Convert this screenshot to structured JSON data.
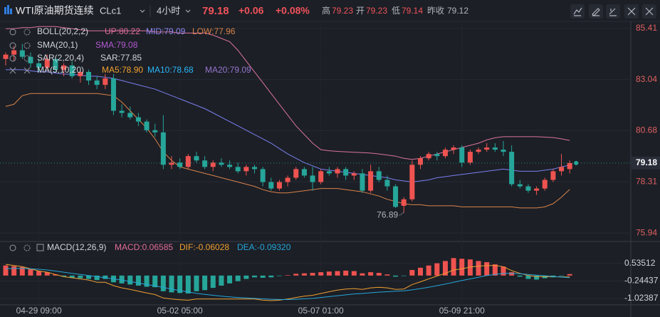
{
  "header": {
    "title": "WTI原油期货连续",
    "symbol": "CLc1",
    "interval": "4小时",
    "price": "79.18",
    "change": "+0.06",
    "change_pct": "+0.08%",
    "high_label": "高",
    "high": "79.23",
    "open_label": "开",
    "open": "79.23",
    "low_label": "低",
    "low": "79.14",
    "prev_label": "昨收",
    "prev": "79.12"
  },
  "chart_data": [
    {
      "type": "candlestick",
      "categories": [
        null,
        null,
        null,
        null,
        "04-29 09:00",
        null,
        null,
        null,
        null,
        null,
        null,
        null,
        null,
        null,
        null,
        null,
        null,
        null,
        null,
        null,
        null,
        "05-02 05:00",
        null,
        null,
        null,
        null,
        null,
        null,
        null,
        null,
        null,
        null,
        null,
        null,
        null,
        null,
        null,
        null,
        "05-07 01:00",
        null,
        null,
        null,
        null,
        null,
        null,
        null,
        null,
        null,
        null,
        null,
        null,
        null,
        null,
        null,
        null,
        "05-09 21:00",
        null,
        null,
        null,
        null,
        null,
        null,
        null,
        null,
        null,
        null,
        null,
        null,
        null
      ],
      "candles": [
        [
          84.0,
          84.3,
          83.7,
          84.2
        ],
        [
          84.2,
          84.6,
          83.9,
          84.4
        ],
        [
          84.4,
          84.7,
          84.0,
          84.1
        ],
        [
          84.1,
          84.3,
          83.6,
          83.8
        ],
        [
          83.8,
          84.0,
          83.4,
          83.6
        ],
        [
          83.6,
          84.2,
          83.5,
          84.0
        ],
        [
          84.0,
          84.1,
          83.4,
          83.5
        ],
        [
          83.5,
          83.8,
          83.2,
          83.7
        ],
        [
          83.7,
          83.9,
          83.1,
          83.2
        ],
        [
          83.2,
          83.5,
          82.9,
          83.4
        ],
        [
          83.4,
          83.5,
          82.8,
          83.0
        ],
        [
          83.0,
          83.2,
          82.6,
          82.8
        ],
        [
          82.8,
          83.3,
          82.6,
          83.1
        ],
        [
          83.1,
          83.3,
          81.4,
          81.6
        ],
        [
          81.6,
          81.9,
          81.3,
          81.5
        ],
        [
          81.5,
          81.8,
          81.2,
          81.3
        ],
        [
          81.3,
          81.5,
          80.9,
          81.1
        ],
        [
          81.1,
          81.2,
          80.6,
          80.7
        ],
        [
          80.7,
          81.0,
          80.4,
          80.6
        ],
        [
          80.6,
          81.4,
          78.9,
          79.1
        ],
        [
          79.1,
          79.5,
          78.9,
          79.2
        ],
        [
          79.2,
          79.4,
          78.9,
          79.0
        ],
        [
          79.0,
          79.6,
          78.9,
          79.5
        ],
        [
          79.5,
          79.7,
          79.2,
          79.3
        ],
        [
          79.3,
          79.5,
          78.9,
          79.0
        ],
        [
          79.0,
          79.3,
          78.8,
          79.2
        ],
        [
          79.2,
          79.4,
          79.0,
          79.1
        ],
        [
          79.1,
          79.3,
          78.9,
          79.0
        ],
        [
          79.0,
          79.2,
          78.7,
          78.8
        ],
        [
          78.8,
          79.1,
          78.6,
          79.0
        ],
        [
          79.0,
          79.1,
          78.7,
          78.9
        ],
        [
          78.9,
          79.0,
          78.1,
          78.3
        ],
        [
          78.3,
          78.5,
          77.9,
          78.0
        ],
        [
          78.0,
          78.4,
          77.9,
          78.3
        ],
        [
          78.3,
          78.6,
          78.1,
          78.5
        ],
        [
          78.5,
          79.0,
          78.4,
          78.9
        ],
        [
          78.9,
          79.0,
          78.5,
          78.6
        ],
        [
          78.6,
          79.0,
          77.9,
          78.3
        ],
        [
          78.3,
          78.9,
          78.2,
          78.8
        ],
        [
          78.8,
          79.0,
          78.6,
          78.7
        ],
        [
          78.7,
          79.0,
          78.5,
          78.9
        ],
        [
          78.9,
          79.0,
          78.4,
          78.6
        ],
        [
          78.6,
          78.8,
          78.4,
          78.7
        ],
        [
          78.7,
          78.9,
          77.8,
          77.9
        ],
        [
          77.9,
          79.1,
          77.8,
          78.8
        ],
        [
          78.8,
          79.0,
          78.3,
          78.4
        ],
        [
          78.4,
          78.6,
          77.9,
          78.1
        ],
        [
          78.1,
          78.2,
          77.1,
          77.15
        ],
        [
          77.2,
          77.6,
          76.89,
          77.5
        ],
        [
          77.5,
          79.3,
          77.4,
          79.1
        ],
        [
          79.1,
          79.5,
          78.9,
          79.4
        ],
        [
          79.4,
          79.7,
          79.3,
          79.6
        ],
        [
          79.6,
          79.7,
          79.3,
          79.5
        ],
        [
          79.5,
          79.9,
          79.4,
          79.8
        ],
        [
          79.8,
          80.0,
          79.6,
          79.9
        ],
        [
          79.9,
          80.0,
          79.0,
          79.2
        ],
        [
          79.2,
          79.8,
          79.1,
          79.7
        ],
        [
          79.7,
          79.9,
          79.6,
          79.8
        ],
        [
          79.8,
          80.1,
          79.7,
          79.9
        ],
        [
          79.9,
          80.1,
          79.7,
          79.8
        ],
        [
          79.8,
          80.2,
          79.5,
          79.7
        ],
        [
          79.7,
          80.0,
          78.1,
          78.2
        ],
        [
          78.2,
          78.4,
          78.0,
          78.1
        ],
        [
          78.1,
          78.2,
          77.8,
          77.9
        ],
        [
          77.9,
          78.1,
          77.7,
          78.0
        ],
        [
          78.0,
          78.5,
          77.9,
          78.4
        ],
        [
          78.4,
          78.9,
          78.3,
          78.8
        ],
        [
          78.8,
          79.6,
          78.6,
          79.0
        ],
        [
          78.9,
          79.3,
          78.7,
          79.18
        ]
      ],
      "up_color": "#ef5350",
      "down_color": "#26a69a",
      "series": [
        {
          "name": "UP",
          "color": "#d9749c",
          "values": [
            85.4,
            85.4,
            85.45,
            85.45,
            85.5,
            85.5,
            85.5,
            85.45,
            85.4,
            85.35,
            85.3,
            85.3,
            85.3,
            85.3,
            85.3,
            85.3,
            85.3,
            85.3,
            85.25,
            85.25,
            85.25,
            85.2,
            85.2,
            85.2,
            85.2,
            85.1,
            84.95,
            84.8,
            84.4,
            83.9,
            83.4,
            82.9,
            82.4,
            81.9,
            81.4,
            80.9,
            80.5,
            80.1,
            79.8,
            79.75,
            79.72,
            79.7,
            79.68,
            79.66,
            79.64,
            79.6,
            79.55,
            79.5,
            79.4,
            79.35,
            79.4,
            79.5,
            79.6,
            79.7,
            79.8,
            79.9,
            80.0,
            80.1,
            80.25,
            80.35,
            80.4,
            80.4,
            80.4,
            80.4,
            80.4,
            80.38,
            80.36,
            80.3,
            80.22
          ]
        },
        {
          "name": "MID",
          "color": "#7b7ff0",
          "values": [
            83.5,
            83.5,
            83.5,
            83.45,
            83.4,
            83.4,
            83.35,
            83.3,
            83.3,
            83.25,
            83.2,
            83.2,
            83.15,
            83.1,
            83.0,
            82.9,
            82.8,
            82.7,
            82.6,
            82.45,
            82.3,
            82.15,
            82.0,
            81.85,
            81.7,
            81.5,
            81.3,
            81.1,
            80.9,
            80.7,
            80.5,
            80.3,
            80.1,
            79.85,
            79.6,
            79.4,
            79.2,
            79.05,
            78.9,
            78.85,
            78.8,
            78.75,
            78.7,
            78.65,
            78.6,
            78.55,
            78.5,
            78.4,
            78.35,
            78.3,
            78.35,
            78.4,
            78.5,
            78.55,
            78.6,
            78.65,
            78.7,
            78.75,
            78.8,
            78.85,
            78.9,
            78.85,
            78.8,
            78.8,
            78.8,
            78.85,
            78.9,
            79.0,
            79.09
          ]
        },
        {
          "name": "LOW",
          "color": "#d9834a",
          "values": [
            81.8,
            81.9,
            82.3,
            82.4,
            82.4,
            82.4,
            82.4,
            82.4,
            82.4,
            82.4,
            82.4,
            82.4,
            82.35,
            82.3,
            82.0,
            81.6,
            81.2,
            80.8,
            80.3,
            79.7,
            79.3,
            79.0,
            78.9,
            78.8,
            78.7,
            78.6,
            78.5,
            78.4,
            78.3,
            78.2,
            78.1,
            77.95,
            77.85,
            77.8,
            77.8,
            77.85,
            77.9,
            77.95,
            78.0,
            78.0,
            78.0,
            77.95,
            77.9,
            77.85,
            77.75,
            77.65,
            77.5,
            77.4,
            77.3,
            77.25,
            77.25,
            77.2,
            77.2,
            77.2,
            77.2,
            77.15,
            77.15,
            77.15,
            77.15,
            77.15,
            77.15,
            77.15,
            77.1,
            77.1,
            77.1,
            77.15,
            77.3,
            77.6,
            77.96
          ]
        }
      ],
      "legend": [
        {
          "name": "BOLL(20,2,2)",
          "items": [
            {
              "text": "UP:80.22",
              "color": "#e06c98"
            },
            {
              "text": "MID:79.09",
              "color": "#8f86f0"
            },
            {
              "text": "LOW:77.96",
              "color": "#d9834a"
            }
          ]
        },
        {
          "name": "SMA(20,1)",
          "items": [
            {
              "text": "SMA:79.08",
              "color": "#b259d0"
            }
          ]
        },
        {
          "name": "SAR(2,20,4)",
          "items": [
            {
              "text": "SAR:77.85",
              "color": "#d1d4dc"
            }
          ]
        },
        {
          "name": "MA(5,10,20)",
          "items": [
            {
              "text": "MA5:78.90",
              "color": "#f0a030"
            },
            {
              "text": "MA10:78.68",
              "color": "#29b6f6"
            },
            {
              "text": "MA20:79.09",
              "color": "#9575cd"
            }
          ]
        }
      ],
      "low_index": 48,
      "ylim": [
        75.58,
        85.74
      ],
      "yticks": [
        75.94,
        78.31,
        80.68,
        83.04,
        85.41
      ],
      "grid": true
    },
    {
      "type": "macd",
      "histogram": [
        0.45,
        0.42,
        0.38,
        0.3,
        0.2,
        0.15,
        0.05,
        -0.05,
        -0.1,
        -0.12,
        -0.15,
        -0.2,
        -0.15,
        -0.3,
        -0.35,
        -0.4,
        -0.45,
        -0.5,
        -0.52,
        -0.7,
        -0.75,
        -0.78,
        -0.8,
        -0.7,
        -0.65,
        -0.55,
        -0.45,
        -0.35,
        -0.25,
        -0.15,
        -0.08,
        -0.1,
        -0.08,
        -0.02,
        0.02,
        0.08,
        0.1,
        0.12,
        0.15,
        0.18,
        0.2,
        0.22,
        0.2,
        0.1,
        0.15,
        0.12,
        0.05,
        -0.05,
        -0.02,
        0.25,
        0.35,
        0.45,
        0.55,
        0.65,
        0.78,
        0.75,
        0.72,
        0.65,
        0.6,
        0.5,
        0.4,
        0.15,
        -0.05,
        -0.15,
        -0.18,
        -0.12,
        -0.08,
        -0.02,
        0.06585
      ],
      "series": [
        {
          "name": "DIF",
          "color": "#f0a030",
          "values": [
            0.5,
            0.45,
            0.4,
            0.3,
            0.2,
            0.15,
            0.05,
            -0.05,
            -0.1,
            -0.15,
            -0.2,
            -0.3,
            -0.3,
            -0.45,
            -0.55,
            -0.62,
            -0.7,
            -0.78,
            -0.85,
            -1.0,
            -1.05,
            -1.08,
            -1.1,
            -1.05,
            -1.05,
            -1.05,
            -1.05,
            -1.05,
            -1.05,
            -1.05,
            -1.05,
            -1.1,
            -1.12,
            -1.1,
            -1.05,
            -0.98,
            -0.92,
            -0.88,
            -0.8,
            -0.72,
            -0.65,
            -0.6,
            -0.58,
            -0.62,
            -0.55,
            -0.52,
            -0.55,
            -0.62,
            -0.6,
            -0.4,
            -0.28,
            -0.15,
            -0.02,
            0.1,
            0.25,
            0.3,
            0.38,
            0.42,
            0.45,
            0.45,
            0.4,
            0.22,
            0.1,
            0.0,
            -0.05,
            -0.05,
            -0.05,
            -0.06,
            -0.06028
          ]
        },
        {
          "name": "DEA",
          "color": "#26a6d9",
          "values": [
            0.3,
            0.32,
            0.32,
            0.3,
            0.28,
            0.25,
            0.2,
            0.15,
            0.1,
            0.05,
            0,
            -0.05,
            -0.1,
            -0.15,
            -0.2,
            -0.27,
            -0.33,
            -0.4,
            -0.46,
            -0.53,
            -0.6,
            -0.67,
            -0.73,
            -0.79,
            -0.84,
            -0.88,
            -0.92,
            -0.95,
            -0.98,
            -1.0,
            -1.02,
            -1.04,
            -1.06,
            -1.07,
            -1.07,
            -1.06,
            -1.04,
            -1.02,
            -0.98,
            -0.94,
            -0.9,
            -0.86,
            -0.82,
            -0.8,
            -0.77,
            -0.74,
            -0.72,
            -0.7,
            -0.68,
            -0.64,
            -0.58,
            -0.52,
            -0.45,
            -0.38,
            -0.3,
            -0.22,
            -0.15,
            -0.08,
            0,
            0.05,
            0.1,
            0.1,
            0.08,
            0.05,
            0.02,
            -0.01,
            -0.04,
            -0.07,
            -0.0932
          ]
        }
      ],
      "legend": {
        "name": "MACD(12,26,9)",
        "items": [
          {
            "text": "MACD:0.06585",
            "color": "#e06c98"
          },
          {
            "text": "DIF:-0.06028",
            "color": "#f0a030"
          },
          {
            "text": "DEA:-0.09320",
            "color": "#26a6d9"
          }
        ]
      },
      "ylim": [
        -1.31,
        1.49
      ],
      "yticks": [
        -1.02387,
        -0.24437,
        0.53512
      ]
    }
  ]
}
